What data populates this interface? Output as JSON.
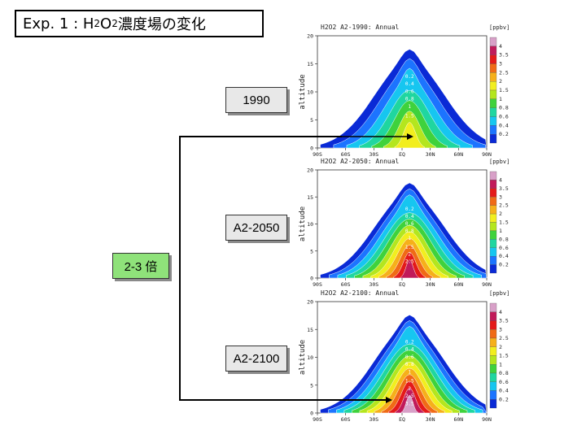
{
  "title": {
    "prefix": "Exp. 1 : H",
    "sub1": "2",
    "mid": "O",
    "sub2": "2",
    "suffix": " 濃度場の変化"
  },
  "labels": {
    "y1990": "1990",
    "y2050": "A2-2050",
    "y2100": "A2-2100",
    "factor": "2-3 倍"
  },
  "colors": {
    "connector": "#000000",
    "factor_box": "#8fe27a",
    "label_box": "#e8e8e8"
  },
  "chart_data": [
    {
      "type": "heatmap",
      "title": "H2O2  A2-1990:  Annual",
      "unit": "[ppbv]",
      "ylabel": "altitude",
      "ylim": [
        0,
        20
      ],
      "yticks": [
        "0",
        "5",
        "10",
        "15",
        "20"
      ],
      "xticks": [
        "90S",
        "60S",
        "30S",
        "EQ",
        "30N",
        "60N",
        "90N"
      ],
      "legend": [
        "4",
        "3.5",
        "3",
        "2.5",
        "2",
        "1.5",
        "1",
        "0.8",
        "0.6",
        "0.4",
        "0.2"
      ],
      "contour_labels": [
        "0.2",
        "0.4",
        "0.6",
        "0.8",
        "1",
        "1.5"
      ],
      "peak": 1.5
    },
    {
      "type": "heatmap",
      "title": "H2O2  A2-2050:  Annual",
      "unit": "[ppbv]",
      "ylabel": "altitude",
      "ylim": [
        0,
        20
      ],
      "yticks": [
        "0",
        "5",
        "10",
        "15",
        "20"
      ],
      "xticks": [
        "90S",
        "60S",
        "30S",
        "EQ",
        "30N",
        "60N",
        "90N"
      ],
      "legend": [
        "4",
        "3.5",
        "3",
        "2.5",
        "2",
        "1.5",
        "1",
        "0.8",
        "0.6",
        "0.4",
        "0.2"
      ],
      "contour_labels": [
        "0.2",
        "0.4",
        "0.6",
        "0.8",
        "1",
        "1.5",
        "2",
        "2.5"
      ],
      "peak": 2.5
    },
    {
      "type": "heatmap",
      "title": "H2O2  A2-2100:  Annual",
      "unit": "[ppbv]",
      "ylabel": "altitude",
      "ylim": [
        0,
        20
      ],
      "yticks": [
        "0",
        "5",
        "10",
        "15",
        "20"
      ],
      "xticks": [
        "90S",
        "60S",
        "30S",
        "EQ",
        "30N",
        "60N",
        "90N"
      ],
      "legend": [
        "4",
        "3.5",
        "3",
        "2.5",
        "2",
        "1.5",
        "1",
        "0.8",
        "0.6",
        "0.4",
        "0.2"
      ],
      "contour_labels": [
        "0.2",
        "0.4",
        "0.6",
        "0.8",
        "1",
        "1.5",
        "2",
        "2.5",
        "3.5"
      ],
      "peak": 3.5
    }
  ]
}
